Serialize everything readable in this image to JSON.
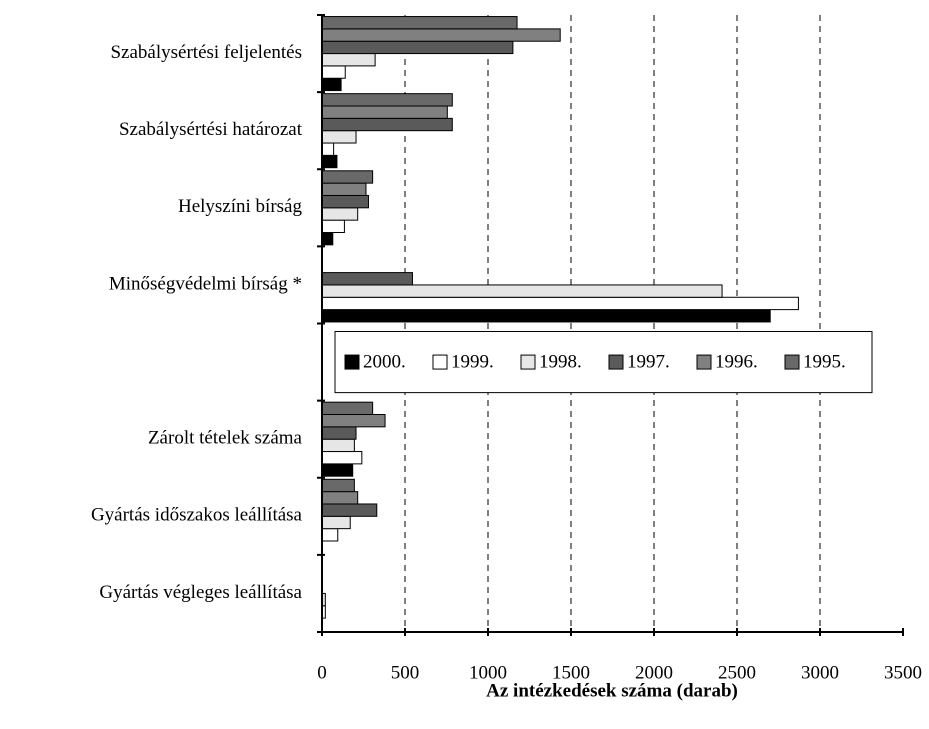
{
  "chart_data": {
    "type": "bar",
    "orientation": "horizontal",
    "xlabel": "Az intézkedések száma (darab)",
    "categories": [
      "Szabálysértési feljelentés",
      "Szabálysértési határozat",
      "Helyszíni bírság",
      "Minőségvédelmi bírság *",
      null,
      "Zárolt tételek száma",
      "Gyártás időszakos leállítása",
      "Gyártás végleges leállítása"
    ],
    "series": [
      {
        "name": "2000.",
        "color": "#000000",
        "values": [
          115,
          90,
          65,
          2700,
          null,
          185,
          null,
          null
        ]
      },
      {
        "name": "1999.",
        "color": "#ffffff",
        "values": [
          140,
          70,
          135,
          2870,
          null,
          240,
          95,
          20
        ]
      },
      {
        "name": "1998.",
        "color": "#e6e6e6",
        "values": [
          320,
          205,
          215,
          2410,
          null,
          195,
          170,
          20
        ]
      },
      {
        "name": "1997.",
        "color": "#5a5a5a",
        "values": [
          1150,
          785,
          280,
          545,
          null,
          205,
          330,
          null
        ]
      },
      {
        "name": "1996.",
        "color": "#808080",
        "values": [
          1435,
          755,
          265,
          null,
          null,
          380,
          215,
          null
        ]
      },
      {
        "name": "1995.",
        "color": "#696969",
        "values": [
          1175,
          785,
          305,
          null,
          null,
          305,
          195,
          null
        ]
      }
    ],
    "xlim": [
      0,
      3500
    ],
    "xticks": [
      0,
      500,
      1000,
      1500,
      2000,
      2500,
      3000,
      3500
    ],
    "grid": true,
    "legend": "center"
  }
}
